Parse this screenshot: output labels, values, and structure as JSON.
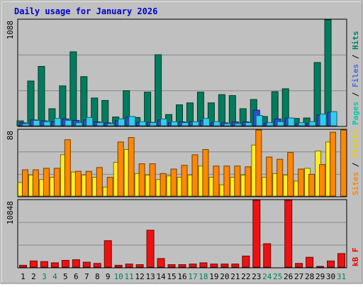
{
  "chart_data": {
    "type": "bar",
    "title": "Daily usage for January 2026",
    "categories": [
      "1",
      "2",
      "3",
      "4",
      "5",
      "6",
      "7",
      "8",
      "9",
      "10",
      "11",
      "12",
      "13",
      "14",
      "15",
      "16",
      "17",
      "18",
      "19",
      "20",
      "21",
      "22",
      "23",
      "24",
      "25",
      "26",
      "27",
      "28",
      "29",
      "30",
      "31"
    ],
    "weekend_days": [
      "3",
      "4",
      "10",
      "11",
      "17",
      "18",
      "24",
      "25",
      "31"
    ],
    "panels": [
      {
        "id": "hits",
        "ymax_label": "1088",
        "ylim": [
          0,
          1088
        ],
        "axis_labels": [
          {
            "text": "Pages",
            "color": "#00ccaa"
          },
          {
            "text": "Files",
            "color": "#4c6cd8"
          },
          {
            "text": "Hits",
            "color": "#008060"
          }
        ],
        "series": [
          {
            "name": "Hits",
            "color": "#007d5e",
            "values": [
              50,
              460,
              610,
              175,
              410,
              760,
              505,
              285,
              260,
              90,
              360,
              85,
              345,
              730,
              115,
              215,
              235,
              345,
              235,
              320,
              310,
              175,
              270,
              95,
              350,
              380,
              75,
              80,
              650,
              1088,
              0
            ]
          },
          {
            "name": "Files",
            "color": "#2b4fd6",
            "values": [
              30,
              60,
              50,
              40,
              70,
              55,
              60,
              40,
              30,
              55,
              90,
              35,
              35,
              60,
              30,
              40,
              40,
              55,
              30,
              30,
              40,
              40,
              160,
              25,
              70,
              80,
              20,
              25,
              110,
              140,
              0
            ]
          },
          {
            "name": "Pages",
            "color": "#33ccee",
            "values": [
              22,
              55,
              42,
              75,
              55,
              32,
              85,
              32,
              22,
              70,
              95,
              42,
              32,
              70,
              42,
              32,
              42,
              75,
              42,
              22,
              22,
              32,
              105,
              32,
              42,
              80,
              32,
              42,
              120,
              145,
              0
            ]
          }
        ]
      },
      {
        "id": "visits",
        "ymax_label": "88",
        "ylim": [
          0,
          88
        ],
        "axis_labels": [
          {
            "text": "Sites",
            "color": "#ff8800"
          },
          {
            "text": "Visits",
            "color": "#eecc00"
          }
        ],
        "series": [
          {
            "name": "Visits",
            "color": "#ffee22",
            "values": [
              18,
              28,
              22,
              25,
              55,
              32,
              28,
              25,
              12,
              45,
              62,
              30,
              28,
              22,
              27,
              25,
              28,
              40,
              25,
              15,
              25,
              28,
              68,
              25,
              30,
              28,
              20,
              37,
              60,
              72,
              0
            ]
          },
          {
            "name": "Sites",
            "color": "#ff8800",
            "values": [
              35,
              35,
              37,
              37,
              75,
              33,
              33,
              38,
              25,
              72,
              78,
              43,
              43,
              30,
              36,
              41,
              55,
              62,
              40,
              40,
              40,
              39,
              88,
              52,
              49,
              58,
              36,
              29,
              42,
              85,
              88
            ]
          }
        ]
      },
      {
        "id": "kb",
        "ymax_label": "10848",
        "ylim": [
          0,
          10848
        ],
        "axis_labels": [
          {
            "text": "kB F",
            "color": "#ee0000"
          }
        ],
        "series": [
          {
            "name": "kB F",
            "color": "#ee1111",
            "values": [
              300,
              1000,
              900,
              700,
              1100,
              1200,
              800,
              600,
              4300,
              300,
              500,
              400,
              6000,
              1400,
              400,
              400,
              500,
              700,
              500,
              500,
              500,
              1800,
              10848,
              3800,
              0,
              10848,
              600,
              1600,
              100,
              1000,
              2200
            ]
          }
        ]
      }
    ]
  }
}
